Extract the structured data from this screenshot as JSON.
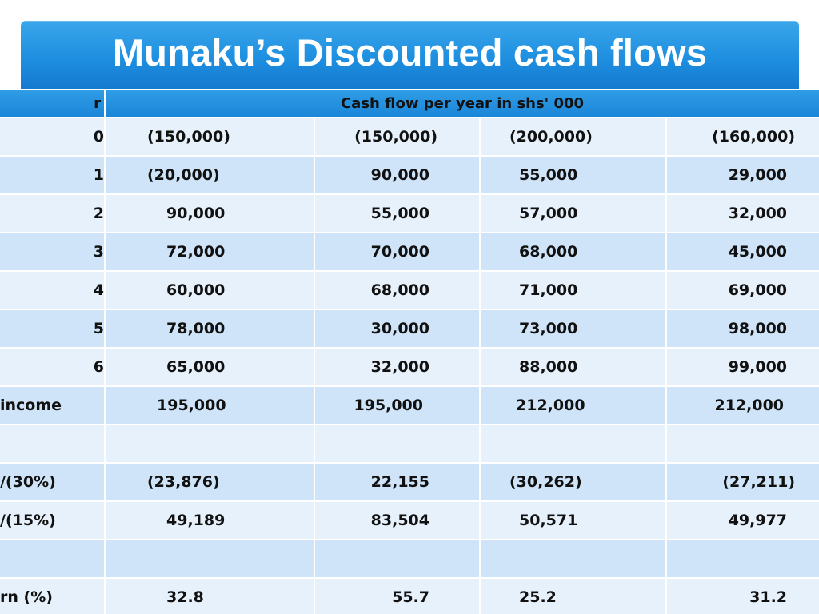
{
  "title": "Munaku’s Discounted cash flows",
  "table": {
    "header_left": "r",
    "header_span": "Cash flow per year in shs' 000",
    "rows": [
      {
        "label": "",
        "year": "0",
        "v": [
          "(150,000)",
          "(150,000)",
          "(200,000)",
          "(160,000)"
        ]
      },
      {
        "label": "",
        "year": "1",
        "v": [
          "(20,000)",
          "90,000",
          "55,000",
          "29,000"
        ]
      },
      {
        "label": "",
        "year": "2",
        "v": [
          "90,000",
          "55,000",
          "57,000",
          "32,000"
        ]
      },
      {
        "label": "",
        "year": "3",
        "v": [
          "72,000",
          "70,000",
          "68,000",
          "45,000"
        ]
      },
      {
        "label": "",
        "year": "4",
        "v": [
          "60,000",
          "68,000",
          "71,000",
          "69,000"
        ]
      },
      {
        "label": "",
        "year": "5",
        "v": [
          "78,000",
          "30,000",
          "73,000",
          "98,000"
        ]
      },
      {
        "label": "",
        "year": "6",
        "v": [
          "65,000",
          "32,000",
          "88,000",
          "99,000"
        ]
      },
      {
        "label": "income",
        "year": "",
        "v": [
          "195,000",
          "195,000",
          "212,000",
          "212,000"
        ]
      },
      {
        "label": "",
        "year": "",
        "v": [
          "",
          "",
          "",
          ""
        ]
      },
      {
        "label": "/(30%)",
        "year": "",
        "v": [
          "(23,876)",
          "22,155",
          "(30,262)",
          "(27,211)"
        ]
      },
      {
        "label": "/(15%)",
        "year": "",
        "v": [
          "49,189",
          "83,504",
          "50,571",
          "49,977"
        ]
      },
      {
        "label": "",
        "year": "",
        "v": [
          "",
          "",
          "",
          ""
        ]
      },
      {
        "label": "rn (%)",
        "year": "",
        "v": [
          "32.8",
          "55.7",
          "25.2",
          "31.2"
        ]
      }
    ]
  },
  "colors": {
    "title_bar": "#1e8fe0",
    "header_row": "#1b86d8",
    "row_dark": "#cfe4f8",
    "row_light": "#e7f1fb"
  }
}
